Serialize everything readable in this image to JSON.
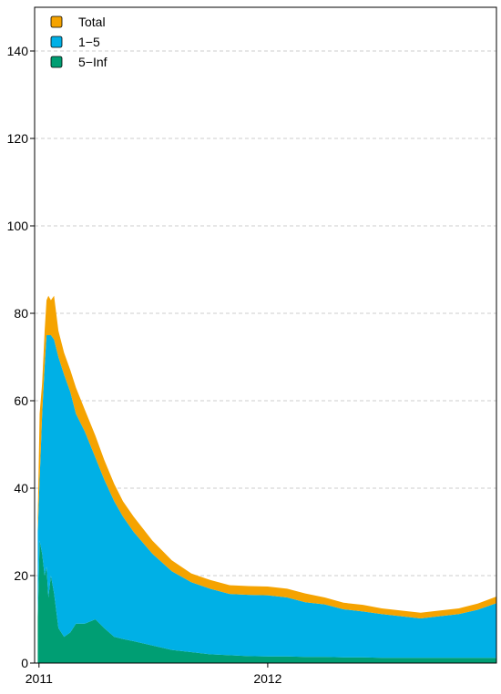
{
  "chart_data": {
    "type": "area",
    "title": "",
    "xlabel": "",
    "ylabel": "",
    "ylim": [
      0,
      150
    ],
    "yticks": [
      0,
      20,
      40,
      60,
      80,
      100,
      120,
      140
    ],
    "xlim": [
      "2010-12-25",
      "2012-12-31"
    ],
    "xticks": [
      {
        "label": "2011",
        "date": "2011-01-01"
      },
      {
        "label": "2012",
        "date": "2012-01-01"
      }
    ],
    "grid": "horizontal dashed",
    "legend_position": "top-left",
    "stacked": true,
    "x": [
      "2010-12-30",
      "2011-01-02",
      "2011-01-06",
      "2011-01-10",
      "2011-01-13",
      "2011-01-16",
      "2011-01-20",
      "2011-01-25",
      "2011-02-01",
      "2011-02-10",
      "2011-02-20",
      "2011-03-01",
      "2011-03-15",
      "2011-04-01",
      "2011-04-15",
      "2011-05-01",
      "2011-05-15",
      "2011-06-01",
      "2011-07-01",
      "2011-08-01",
      "2011-09-01",
      "2011-10-01",
      "2011-11-01",
      "2011-12-01",
      "2012-01-01",
      "2012-02-01",
      "2012-03-01",
      "2012-04-01",
      "2012-05-01",
      "2012-06-01",
      "2012-07-01",
      "2012-08-01",
      "2012-09-01",
      "2012-10-01",
      "2012-11-01",
      "2012-12-01",
      "2012-12-31"
    ],
    "series": [
      {
        "name": "5−Inf",
        "color": "#009E73",
        "values": [
          10,
          28,
          25,
          20,
          22,
          15,
          20,
          16,
          8,
          6,
          7,
          9,
          9,
          10,
          8,
          6,
          5.5,
          5,
          4,
          3,
          2.5,
          2,
          1.8,
          1.6,
          1.5,
          1.5,
          1.4,
          1.4,
          1.3,
          1.3,
          1.2,
          1.2,
          1.2,
          1.2,
          1.2,
          1.2,
          1.2
        ]
      },
      {
        "name": "1−5",
        "color": "#00B0E6",
        "values": [
          20,
          14,
          32,
          48,
          53,
          60,
          55,
          58,
          62,
          60,
          55,
          48,
          44,
          37,
          34,
          31,
          28,
          25,
          21,
          18,
          16,
          15,
          14,
          14,
          14,
          13.5,
          12.5,
          12,
          11,
          10.5,
          10,
          9.5,
          9,
          9.5,
          10,
          11,
          12.5
        ]
      },
      {
        "name": "Total",
        "color": "#F5A300",
        "values": [
          3,
          15,
          7,
          8,
          8,
          9,
          8,
          10,
          6,
          5,
          5,
          6,
          5,
          5,
          4.5,
          4,
          3.5,
          3.5,
          3,
          2.5,
          2,
          2,
          2,
          2,
          2,
          2,
          2,
          1.6,
          1.5,
          1.5,
          1.3,
          1.3,
          1.3,
          1.3,
          1.3,
          1.4,
          1.5
        ]
      }
    ]
  }
}
